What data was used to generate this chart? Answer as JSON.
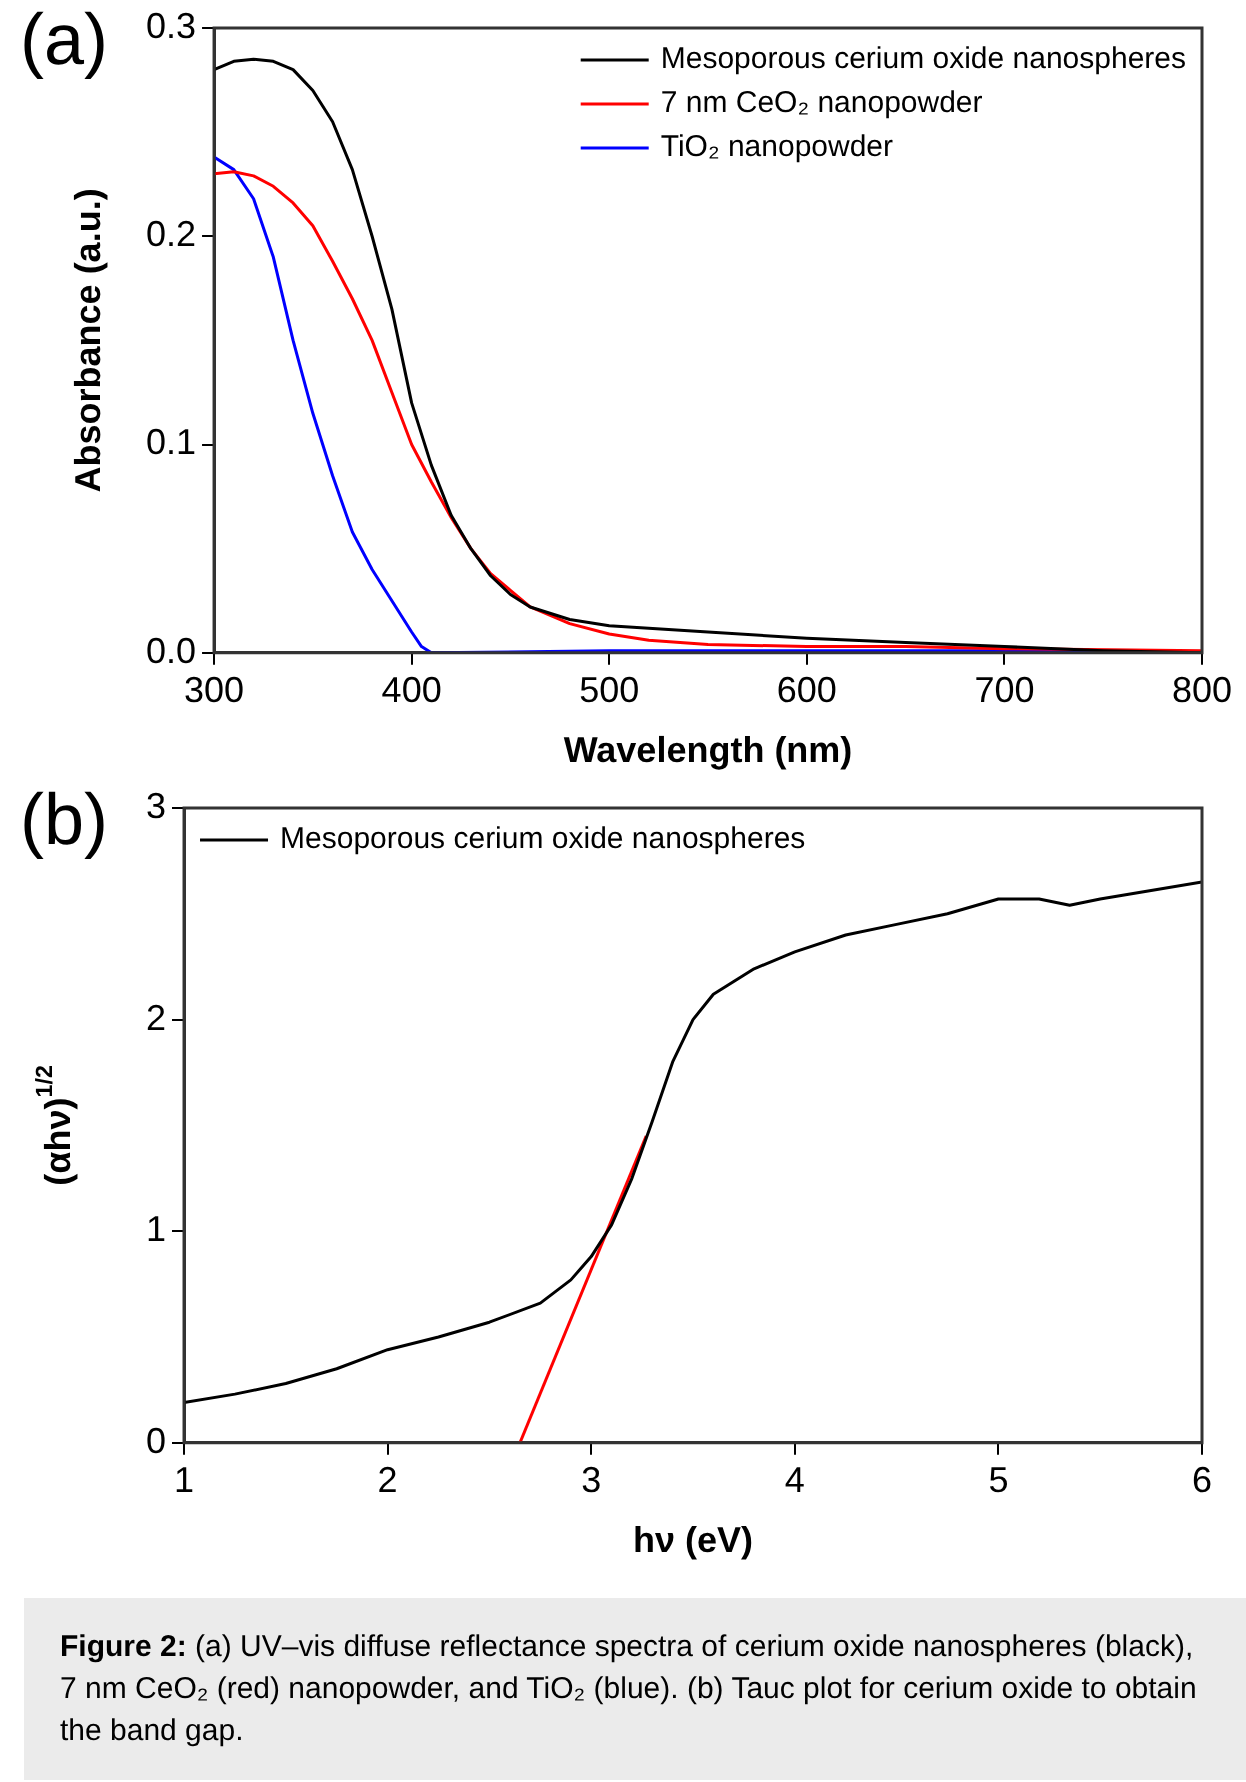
{
  "chart_data": [
    {
      "type": "line",
      "title": "(a)",
      "xlabel": "Wavelength (nm)",
      "ylabel": "Absorbance (a.u.)",
      "xlim": [
        300,
        800
      ],
      "xticks": [
        300,
        400,
        500,
        600,
        700,
        800
      ],
      "ylim": [
        0,
        0.3
      ],
      "yticks": [
        {
          "value": 0,
          "label": "0.0"
        },
        0.1,
        0.2,
        0.3
      ],
      "legend": "top right",
      "marker": "none",
      "line_style": "solid",
      "series": [
        {
          "name": "Mesoporous cerium oxide nanospheres",
          "color": "#000000",
          "x": [
            300,
            310,
            320,
            330,
            340,
            350,
            360,
            370,
            380,
            390,
            400,
            410,
            420,
            430,
            440,
            450,
            460,
            480,
            500,
            550,
            600,
            650,
            700,
            750,
            800
          ],
          "values": [
            0.28,
            0.284,
            0.285,
            0.284,
            0.28,
            0.27,
            0.255,
            0.232,
            0.2,
            0.165,
            0.12,
            0.09,
            0.066,
            0.05,
            0.037,
            0.028,
            0.022,
            0.016,
            0.013,
            0.01,
            0.007,
            0.005,
            0.003,
            0.001,
            0
          ]
        },
        {
          "name": "7 nm CeO₂ nanopowder",
          "color": "#ff0000",
          "x": [
            300,
            310,
            320,
            330,
            340,
            350,
            360,
            370,
            380,
            390,
            400,
            410,
            420,
            430,
            440,
            450,
            460,
            480,
            500,
            520,
            550,
            600,
            650,
            700,
            800
          ],
          "values": [
            0.23,
            0.231,
            0.229,
            0.224,
            0.216,
            0.205,
            0.188,
            0.17,
            0.15,
            0.125,
            0.1,
            0.082,
            0.065,
            0.05,
            0.038,
            0.03,
            0.022,
            0.014,
            0.009,
            0.006,
            0.004,
            0.003,
            0.003,
            0.002,
            0.001
          ]
        },
        {
          "name": "TiO₂ nanopowder",
          "color": "#0000ff",
          "x": [
            300,
            310,
            320,
            330,
            340,
            350,
            360,
            370,
            380,
            390,
            400,
            405,
            410,
            500,
            600,
            700,
            800
          ],
          "values": [
            0.238,
            0.232,
            0.218,
            0.19,
            0.15,
            0.115,
            0.085,
            0.058,
            0.04,
            0.025,
            0.01,
            0.003,
            0,
            0.001,
            0.001,
            0.001,
            0
          ]
        }
      ]
    },
    {
      "type": "line",
      "title": "(b)",
      "xlabel": "hν (eV)",
      "ylabel": "(αhν)$^{1/2}$",
      "xlim": [
        1,
        6
      ],
      "xticks": [
        1,
        2,
        3,
        4,
        5,
        6
      ],
      "ylim": [
        0,
        3
      ],
      "yticks": [
        0,
        1,
        2,
        3
      ],
      "legend": "top left",
      "marker": "none",
      "line_style": "solid",
      "annotations": [
        "Figure 2: (a) UV–vis diffuse reflectance spectra of cerium oxide nanospheres (black), 7 nm CeO₂ (red) nanopowder, and TiO₂ (blue). (b) Tauc plot for cerium oxide to obtain the band gap."
      ],
      "series": [
        {
          "name": "Mesoporous cerium oxide nanospheres",
          "color": "#000000",
          "x": [
            1,
            1.25,
            1.5,
            1.75,
            2,
            2.25,
            2.5,
            2.75,
            2.9,
            3,
            3.1,
            3.2,
            3.3,
            3.4,
            3.5,
            3.6,
            3.7,
            3.8,
            4,
            4.25,
            4.5,
            4.75,
            5,
            5.2,
            5.35,
            5.5,
            5.75,
            6
          ],
          "values": [
            0.19,
            0.23,
            0.28,
            0.35,
            0.44,
            0.5,
            0.57,
            0.66,
            0.77,
            0.88,
            1.03,
            1.25,
            1.52,
            1.8,
            2,
            2.12,
            2.18,
            2.24,
            2.32,
            2.4,
            2.45,
            2.5,
            2.57,
            2.57,
            2.54,
            2.57,
            2.61,
            2.65
          ]
        },
        {
          "type": "line",
          "color": "#ff0000",
          "x": [
            2.65,
            3.27
          ],
          "values": [
            0,
            1.45
          ]
        }
      ]
    }
  ]
}
